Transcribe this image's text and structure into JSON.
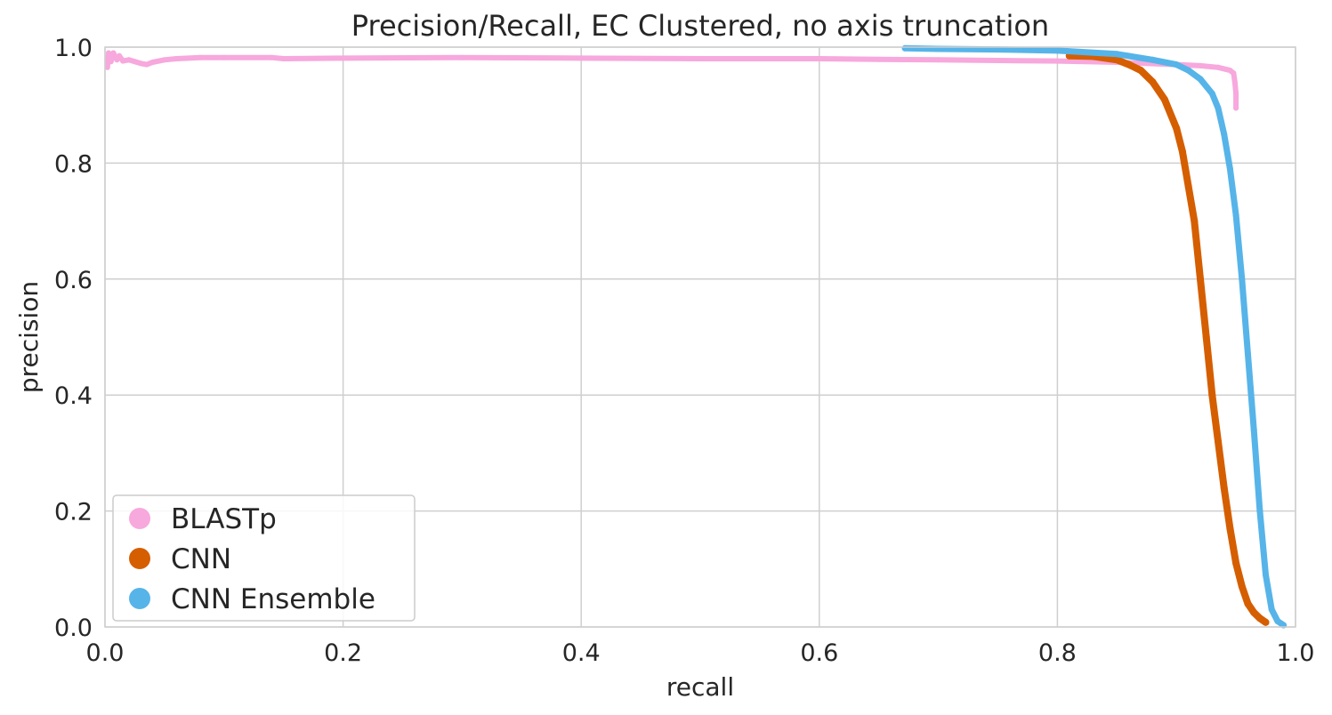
{
  "chart_data": {
    "type": "scatter",
    "title": "Precision/Recall, EC Clustered, no axis truncation",
    "xlabel": "recall",
    "ylabel": "precision",
    "xlim": [
      0.0,
      1.0
    ],
    "ylim": [
      0.0,
      1.0
    ],
    "xticks": [
      "0.0",
      "0.2",
      "0.4",
      "0.6",
      "0.8",
      "1.0"
    ],
    "yticks": [
      "0.0",
      "0.2",
      "0.4",
      "0.6",
      "0.8",
      "1.0"
    ],
    "grid": true,
    "legend_position": "lower-left",
    "series": [
      {
        "name": "BLASTp",
        "color": "#f7a8dd",
        "points": [
          [
            0.002,
            0.965
          ],
          [
            0.003,
            0.99
          ],
          [
            0.005,
            0.975
          ],
          [
            0.007,
            0.99
          ],
          [
            0.01,
            0.978
          ],
          [
            0.012,
            0.985
          ],
          [
            0.015,
            0.976
          ],
          [
            0.02,
            0.978
          ],
          [
            0.025,
            0.975
          ],
          [
            0.03,
            0.972
          ],
          [
            0.035,
            0.97
          ],
          [
            0.04,
            0.974
          ],
          [
            0.05,
            0.978
          ],
          [
            0.06,
            0.98
          ],
          [
            0.08,
            0.982
          ],
          [
            0.1,
            0.982
          ],
          [
            0.14,
            0.982
          ],
          [
            0.15,
            0.98
          ],
          [
            0.2,
            0.981
          ],
          [
            0.3,
            0.982
          ],
          [
            0.4,
            0.981
          ],
          [
            0.5,
            0.98
          ],
          [
            0.6,
            0.98
          ],
          [
            0.65,
            0.979
          ],
          [
            0.7,
            0.978
          ],
          [
            0.75,
            0.977
          ],
          [
            0.8,
            0.976
          ],
          [
            0.85,
            0.974
          ],
          [
            0.9,
            0.97
          ],
          [
            0.92,
            0.968
          ],
          [
            0.935,
            0.965
          ],
          [
            0.945,
            0.96
          ],
          [
            0.948,
            0.955
          ],
          [
            0.949,
            0.94
          ],
          [
            0.95,
            0.92
          ],
          [
            0.95,
            0.895
          ]
        ]
      },
      {
        "name": "CNN",
        "color": "#d55e00",
        "points": [
          [
            0.81,
            0.985
          ],
          [
            0.83,
            0.984
          ],
          [
            0.85,
            0.978
          ],
          [
            0.86,
            0.97
          ],
          [
            0.87,
            0.96
          ],
          [
            0.88,
            0.94
          ],
          [
            0.89,
            0.91
          ],
          [
            0.9,
            0.86
          ],
          [
            0.905,
            0.82
          ],
          [
            0.91,
            0.76
          ],
          [
            0.915,
            0.7
          ],
          [
            0.92,
            0.6
          ],
          [
            0.925,
            0.5
          ],
          [
            0.93,
            0.4
          ],
          [
            0.935,
            0.32
          ],
          [
            0.94,
            0.24
          ],
          [
            0.945,
            0.17
          ],
          [
            0.95,
            0.11
          ],
          [
            0.955,
            0.07
          ],
          [
            0.96,
            0.04
          ],
          [
            0.965,
            0.025
          ],
          [
            0.97,
            0.015
          ],
          [
            0.975,
            0.008
          ]
        ]
      },
      {
        "name": "CNN Ensemble",
        "color": "#56b4e9",
        "points": [
          [
            0.672,
            0.998
          ],
          [
            0.7,
            0.997
          ],
          [
            0.75,
            0.996
          ],
          [
            0.8,
            0.994
          ],
          [
            0.85,
            0.988
          ],
          [
            0.88,
            0.978
          ],
          [
            0.9,
            0.97
          ],
          [
            0.91,
            0.96
          ],
          [
            0.92,
            0.945
          ],
          [
            0.93,
            0.92
          ],
          [
            0.935,
            0.895
          ],
          [
            0.94,
            0.85
          ],
          [
            0.945,
            0.79
          ],
          [
            0.95,
            0.71
          ],
          [
            0.955,
            0.6
          ],
          [
            0.96,
            0.47
          ],
          [
            0.965,
            0.34
          ],
          [
            0.97,
            0.2
          ],
          [
            0.975,
            0.09
          ],
          [
            0.98,
            0.03
          ],
          [
            0.985,
            0.01
          ],
          [
            0.99,
            0.003
          ]
        ]
      }
    ]
  }
}
